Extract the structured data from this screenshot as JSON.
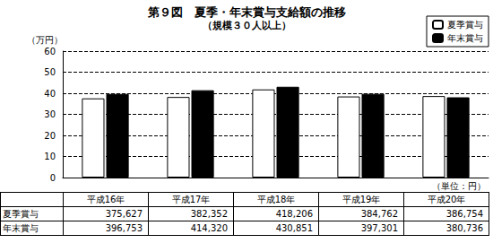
{
  "chart_data": {
    "type": "bar",
    "title": "第９図　夏季・年末賞与支給額の推移",
    "subtitle": "（規模３０人以上）",
    "y_label": "（万円）",
    "categories": [
      "平成16年",
      "平成17年",
      "平成18年",
      "平成19年",
      "平成20年"
    ],
    "series": [
      {
        "name": "夏季賞与",
        "color": "#ffffff",
        "values": [
          37.5627,
          38.2352,
          41.8206,
          38.4762,
          38.6754
        ]
      },
      {
        "name": "年末賞与",
        "color": "#000000",
        "values": [
          39.6753,
          41.432,
          43.0851,
          39.7301,
          38.0736
        ]
      }
    ],
    "ylim": [
      0,
      60
    ],
    "yticks": [
      0,
      10,
      20,
      30,
      40,
      50,
      60
    ],
    "grid": true,
    "legend": "upper right",
    "tick_labels": "y"
  },
  "table": {
    "unit": "（単位：円）",
    "rows": [
      {
        "label": "夏季賞与",
        "cells": [
          "375,627",
          "382,352",
          "418,206",
          "384,762",
          "386,754"
        ]
      },
      {
        "label": "年末賞与",
        "cells": [
          "396,753",
          "414,320",
          "430,851",
          "397,301",
          "380,736"
        ]
      }
    ]
  }
}
